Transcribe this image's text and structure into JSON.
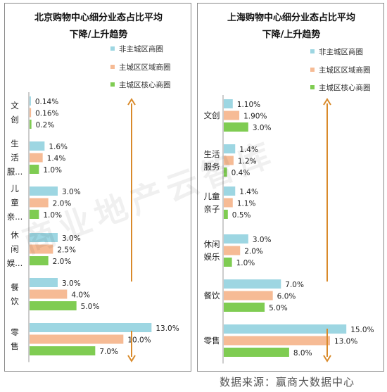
{
  "colors": {
    "non_core": "#9dd6e2",
    "main_area": "#f6bb95",
    "core": "#7fcc52",
    "arrow": "#d98a2a",
    "axis": "#999999"
  },
  "legend": [
    "非主城区商圈",
    "主城区区域商圈",
    "主城区核心商圈"
  ],
  "source_text": "数据来源：赢商大数据中心",
  "watermark_text": "商业地产云智库",
  "chart_data": [
    {
      "type": "bar",
      "orientation": "horizontal",
      "title_lines": [
        "北京购物中心细分业态占比平均",
        "下降/上升趋势"
      ],
      "categories": [
        "文创",
        "生活服务",
        "儿童亲子",
        "休闲娱乐",
        "餐饮",
        "零售"
      ],
      "category_labels": [
        [
          "文",
          "创"
        ],
        [
          "生",
          "活",
          "服..."
        ],
        [
          "儿",
          "童",
          "亲..."
        ],
        [
          "休",
          "闲",
          "娱..."
        ],
        [
          "餐",
          "饮"
        ],
        [
          "零",
          "售"
        ]
      ],
      "series": [
        {
          "name": "非主城区商圈",
          "values": [
            0.14,
            1.6,
            3.0,
            3.0,
            3.0,
            13.0
          ],
          "labels": [
            "0.14%",
            "1.6%",
            "3.0%",
            "3.0%",
            "3.0%",
            "13.0%"
          ]
        },
        {
          "name": "主城区区域商圈",
          "values": [
            0.16,
            1.4,
            2.0,
            2.5,
            4.0,
            10.0
          ],
          "labels": [
            "0.16%",
            "1.4%",
            "2.0%",
            "2.5%",
            "4.0%",
            "10.0%"
          ]
        },
        {
          "name": "主城区核心商圈",
          "values": [
            0.2,
            1.0,
            1.0,
            2.0,
            5.0,
            7.0
          ],
          "labels": [
            "0.2%",
            "1.0%",
            "1.0%",
            "2.0%",
            "5.0%",
            "7.0%"
          ]
        }
      ],
      "xlim": [
        0,
        13.5
      ],
      "legend_position": "top-right",
      "trend": "up then down"
    },
    {
      "type": "bar",
      "orientation": "horizontal",
      "title_lines": [
        "上海购物中心细分业态占比平均",
        "下降/上升趋势"
      ],
      "categories": [
        "文创",
        "生活服务",
        "儿童亲子",
        "休闲娱乐",
        "餐饮",
        "零售"
      ],
      "category_labels": [
        [
          "文创"
        ],
        [
          "生活",
          "服务"
        ],
        [
          "儿童",
          "亲子"
        ],
        [
          "休闲",
          "娱乐"
        ],
        [
          "餐饮"
        ],
        [
          "零售"
        ]
      ],
      "series": [
        {
          "name": "非主城区商圈",
          "values": [
            1.1,
            1.4,
            1.4,
            3.0,
            7.0,
            15.0
          ],
          "labels": [
            "1.10%",
            "1.4%",
            "1.4%",
            "3.0%",
            "7.0%",
            "15.0%"
          ]
        },
        {
          "name": "主城区区域商圈",
          "values": [
            1.9,
            1.2,
            1.1,
            2.0,
            6.0,
            13.0
          ],
          "labels": [
            "1.90%",
            "1.2%",
            "1.1%",
            "2.0%",
            "6.0%",
            "13.0%"
          ]
        },
        {
          "name": "主城区核心商圈",
          "values": [
            3.0,
            0.4,
            0.5,
            1.0,
            5.0,
            8.0
          ],
          "labels": [
            "3.0%",
            "0.4%",
            "0.5%",
            "1.0%",
            "5.0%",
            "8.0%"
          ]
        }
      ],
      "xlim": [
        0,
        15.5
      ],
      "legend_position": "top-right",
      "trend": "up then down"
    }
  ]
}
